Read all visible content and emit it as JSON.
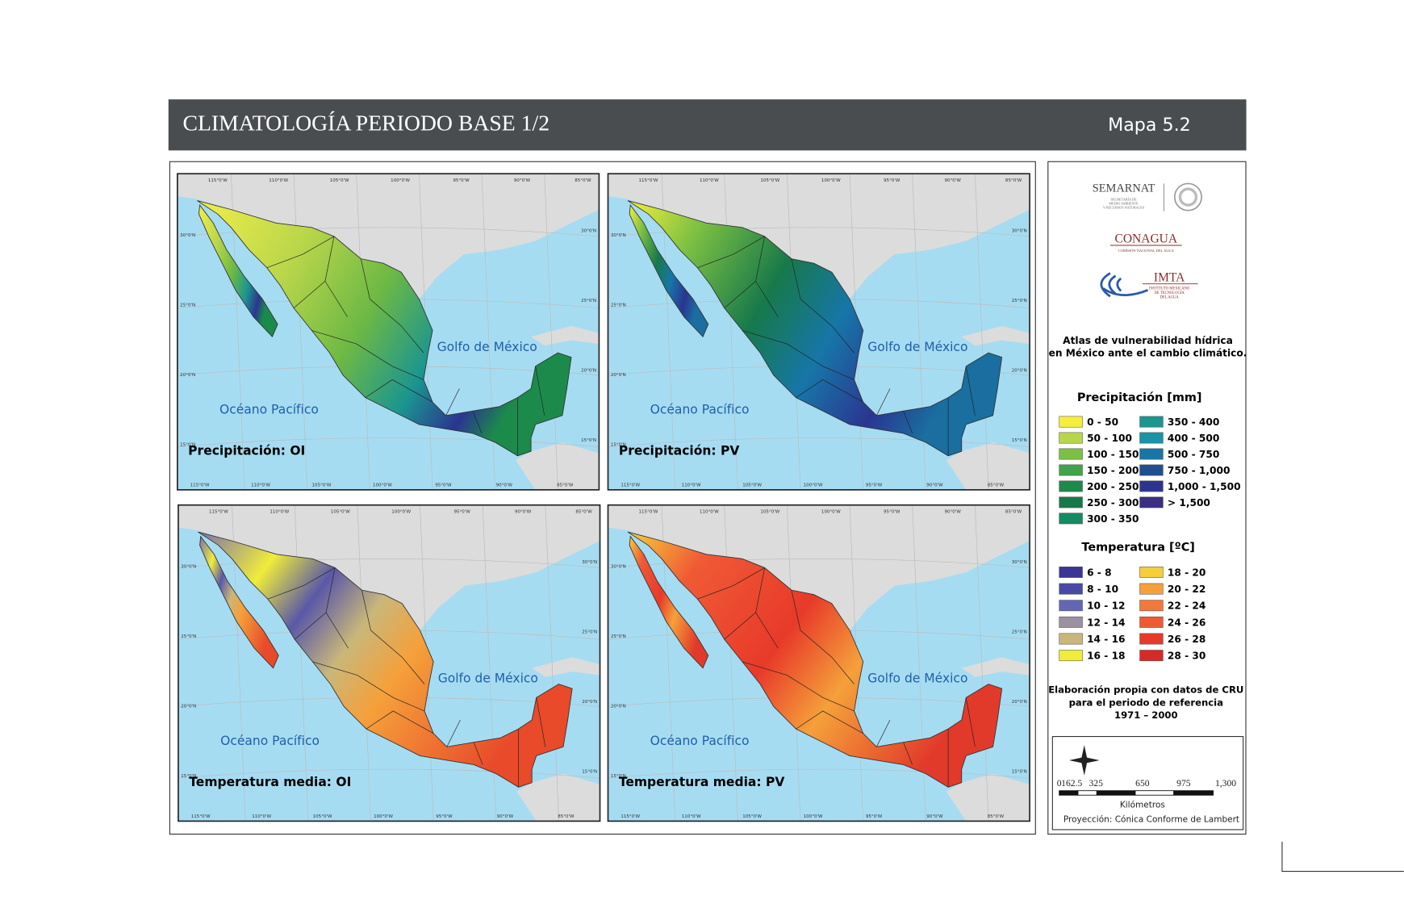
{
  "header": {
    "title": "CLIMATOLOGÍA PERIODO BASE 1/2",
    "map_number": "Mapa 5.2"
  },
  "graticule": {
    "lon": [
      "115°0'W",
      "110°0'W",
      "105°0'W",
      "100°0'W",
      "95°0'W",
      "90°0'W",
      "85°0'W"
    ],
    "lat": [
      "30°0'N",
      "25°0'N",
      "20°0'N",
      "15°0'N"
    ]
  },
  "panels": [
    {
      "title": "Precipitación: OI",
      "gulf": "Golfo de México",
      "pacific": "Océano Pacífico"
    },
    {
      "title": "Precipitación: PV",
      "gulf": "Golfo de México",
      "pacific": "Océano Pacífico"
    },
    {
      "title": "Temperatura media: OI",
      "gulf": "Golfo de México",
      "pacific": "Océano Pacífico"
    },
    {
      "title": "Temperatura media: PV",
      "gulf": "Golfo de México",
      "pacific": "Océano Pacífico"
    }
  ],
  "legend": {
    "logos": {
      "semarnat": "SEMARNAT",
      "semarnat_sub": [
        "SECRETARÍA DE",
        "MEDIO AMBIENTE",
        "Y RECURSOS NATURALES"
      ],
      "conagua": "CONAGUA",
      "conagua_sub": "COMISIÓN NACIONAL DEL AGUA",
      "imta": "IMTA",
      "imta_sub": [
        "INSTITUTO MEXICANO",
        "DE TECNOLOGÍA",
        "DEL AGUA"
      ]
    },
    "atlas": [
      "Atlas de vulnerabilidad  hídrica",
      "en México ante el cambio climático."
    ],
    "precipitation": {
      "title": "Precipitación [mm]",
      "items": [
        {
          "label": "0 - 50",
          "color": "#f5ee3a"
        },
        {
          "label": "50 - 100",
          "color": "#b9d64a"
        },
        {
          "label": "100 - 150",
          "color": "#7cc043"
        },
        {
          "label": "150 - 200",
          "color": "#3fa548"
        },
        {
          "label": "200 - 250",
          "color": "#1c8a4b"
        },
        {
          "label": "250 - 300",
          "color": "#17794a"
        },
        {
          "label": "300 - 350",
          "color": "#158a63"
        },
        {
          "label": "350 - 400",
          "color": "#1b9590"
        },
        {
          "label": "400 - 500",
          "color": "#1a93a6"
        },
        {
          "label": "500 - 750",
          "color": "#1776a8"
        },
        {
          "label": "750 - 1,000",
          "color": "#214e92"
        },
        {
          "label": "1,000 - 1,500",
          "color": "#2b3591"
        },
        {
          "label": "> 1,500",
          "color": "#3a2e85"
        }
      ]
    },
    "temperature": {
      "title": "Temperatura [ºC]",
      "items": [
        {
          "label": "6 - 8",
          "color": "#3b3596"
        },
        {
          "label": "8 - 10",
          "color": "#4a4aa6"
        },
        {
          "label": "10 - 12",
          "color": "#6366b0"
        },
        {
          "label": "12 - 14",
          "color": "#9d90a0"
        },
        {
          "label": "14 - 16",
          "color": "#c9b77a"
        },
        {
          "label": "16 - 18",
          "color": "#f0ec3a"
        },
        {
          "label": "18 - 20",
          "color": "#f6ce3a"
        },
        {
          "label": "20 - 22",
          "color": "#f5a03a"
        },
        {
          "label": "22 - 24",
          "color": "#f2793a"
        },
        {
          "label": "24 - 26",
          "color": "#ef5a35"
        },
        {
          "label": "26 - 28",
          "color": "#e83a2a"
        },
        {
          "label": "28 - 30",
          "color": "#d62a26"
        }
      ]
    },
    "source": [
      "Elaboración propia con datos de CRU",
      "para el periodo de referencia",
      "1971 – 2000"
    ],
    "scale_bar": {
      "labels": [
        "0",
        "162.5",
        "325",
        "650",
        "975",
        "1,300"
      ],
      "unit": "Kilómetros"
    },
    "projection": "Proyección: Cónica Conforme de Lambert"
  }
}
